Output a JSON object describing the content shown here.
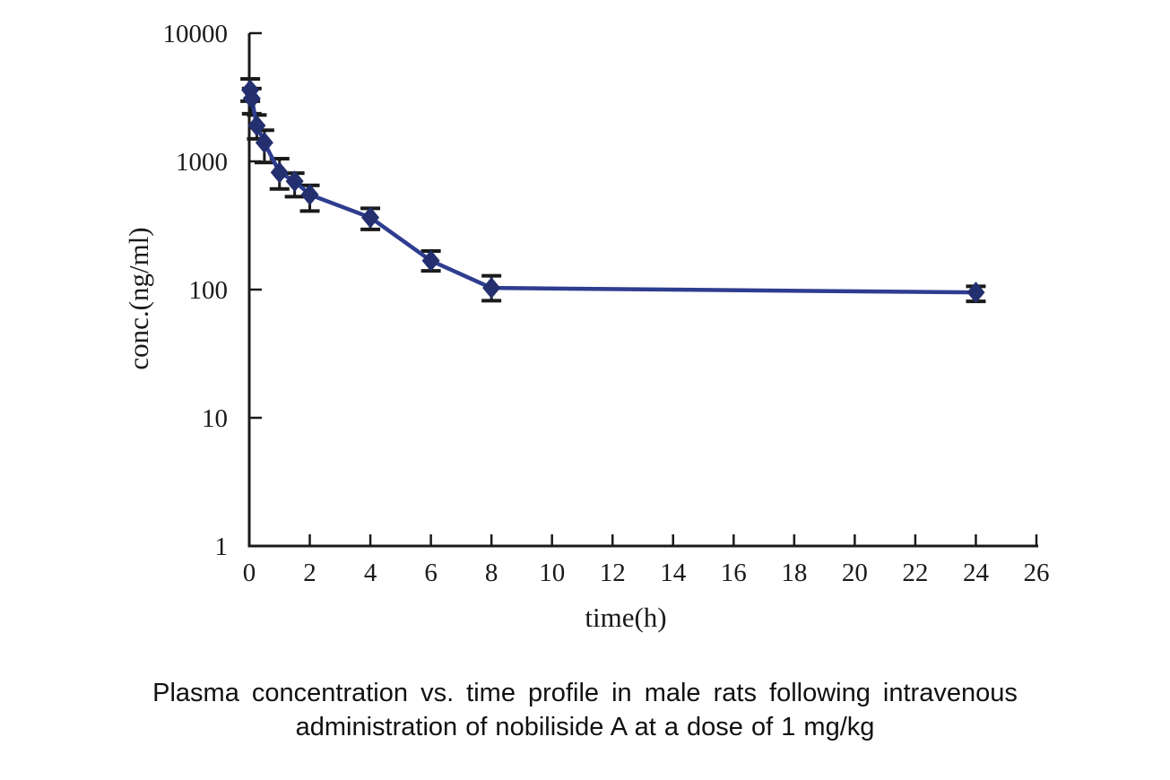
{
  "figure": {
    "caption_line1": "Plasma concentration vs. time profile in male rats following intravenous",
    "caption_line2": "administration of nobiliside A at a dose of 1 mg/kg"
  },
  "chart_data": {
    "type": "line",
    "title": "",
    "xlabel": "time(h)",
    "ylabel": "conc.(ng/ml)",
    "x_scale": "linear",
    "y_scale": "log",
    "xlim": [
      0,
      26
    ],
    "ylim": [
      1,
      10000
    ],
    "x_ticks": [
      0,
      2,
      4,
      6,
      8,
      10,
      12,
      14,
      16,
      18,
      20,
      22,
      24,
      26
    ],
    "y_ticks": [
      1,
      10,
      100,
      1000,
      10000
    ],
    "grid": false,
    "legend": "none",
    "series": [
      {
        "name": "nobiliside A plasma concentration",
        "marker": "diamond",
        "x": [
          0.033,
          0.083,
          0.25,
          0.5,
          1,
          1.5,
          2,
          4,
          6,
          8,
          24
        ],
        "y": [
          3600,
          3100,
          1900,
          1400,
          820,
          700,
          550,
          365,
          168,
          103,
          95
        ],
        "err_low": [
          2950,
          2350,
          1500,
          980,
          610,
          530,
          410,
          295,
          140,
          82,
          81
        ],
        "err_high": [
          4400,
          3700,
          2300,
          1750,
          1050,
          810,
          650,
          430,
          200,
          128,
          106
        ]
      }
    ],
    "colors": {
      "line": "#2e3d8f",
      "marker": "#232f6e",
      "error_bar": "#1a1a1a",
      "axis": "#1a1a1a"
    }
  }
}
